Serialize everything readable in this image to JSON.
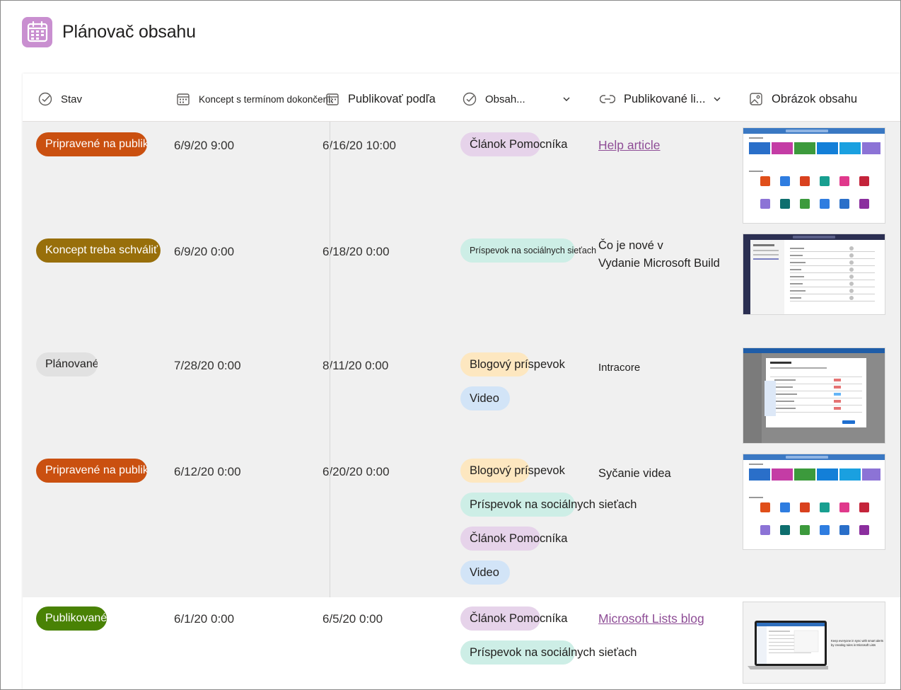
{
  "app": {
    "title": "Plánovač obsahu",
    "icon": "calendar-icon",
    "accent": "#c98fd0"
  },
  "columns": [
    {
      "label": "Stav",
      "icon": "status-check-icon"
    },
    {
      "label": "Koncept s termínom dokončenia",
      "icon": "calendar-icon"
    },
    {
      "label": "Publikovať podľa",
      "icon": "calendar-icon"
    },
    {
      "label": "Obsah...",
      "icon": "status-check-icon"
    },
    {
      "label": "Publikované li...",
      "icon": "link-icon"
    },
    {
      "label": "Obrázok obsahu",
      "icon": "image-icon"
    }
  ],
  "rows": [
    {
      "status": "Pripravené na publikovanie",
      "status_color": "#ca5010",
      "draft_due": "6/9/20 9:00",
      "publish_by": "6/16/20 10:00",
      "tags": [
        "Článok Pomocníka"
      ],
      "link": "Help article",
      "link_style": "underline"
    },
    {
      "status": "Koncept treba schváliť",
      "status_color": "#986f0b",
      "draft_due": "6/9/20 0:00",
      "publish_by": "6/18/20 0:00",
      "tags": [
        "Príspevok na sociálnych sieťach"
      ],
      "link_lines": [
        "Čo je nové v",
        "Vydanie Microsoft Build"
      ]
    },
    {
      "status": "Plánované",
      "status_color": "#e1e1e1",
      "draft_due": "7/28/20 0:00",
      "publish_by": "8/11/20 0:00",
      "tags": [
        "Blogový príspevok",
        "Video"
      ],
      "link": "Intracore"
    },
    {
      "status": "Pripravené na publikovanie",
      "status_color": "#ca5010",
      "draft_due": "6/12/20 0:00",
      "publish_by": "6/20/20 0:00",
      "tags": [
        "Blogový príspevok",
        "Príspevok na sociálnych sieťach",
        "Článok Pomocníka",
        "Video"
      ],
      "link": "Syčanie videa"
    },
    {
      "status": "Publikované",
      "status_color": "#498205",
      "draft_due": "6/1/20 0:00",
      "publish_by": "6/5/20 0:00",
      "tags": [
        "Článok Pomocníka",
        "Príspevok na sociálnych sieťach"
      ],
      "link": "Microsoft Lists blog",
      "link_style": "underline"
    }
  ],
  "thumbnail5": {
    "caption": "Keep everyone in sync with smart alerts by creating rules in Microsoft Lists"
  }
}
